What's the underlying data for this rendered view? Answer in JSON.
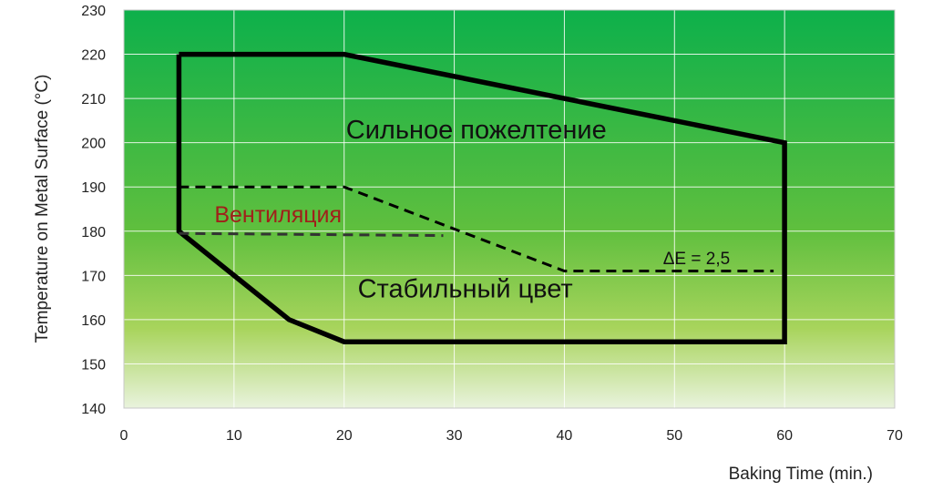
{
  "chart_data": {
    "type": "line",
    "xlabel": "Baking Time (min.)",
    "ylabel": "Temperature on Metal Surface (°C)",
    "xlim": [
      0,
      70
    ],
    "ylim": [
      140,
      230
    ],
    "x_ticks": [
      "0",
      "10",
      "20",
      "30",
      "40",
      "50",
      "60",
      "70"
    ],
    "y_ticks": [
      "140",
      "150",
      "160",
      "170",
      "180",
      "190",
      "200",
      "210",
      "220",
      "230"
    ],
    "grid": true,
    "background": {
      "top_color": "#0db04b",
      "bottom_color": "#e9f3dd"
    },
    "series": [
      {
        "style": "solid",
        "color": "#000000",
        "x": [
          5,
          20,
          60,
          60,
          20,
          15,
          5,
          5
        ],
        "y": [
          220,
          220,
          200,
          155,
          155,
          160,
          180,
          220
        ]
      },
      {
        "style": "dashed",
        "color": "#000000",
        "x": [
          5,
          20,
          40,
          59
        ],
        "y": [
          190,
          190,
          171,
          171
        ]
      },
      {
        "style": "dashed",
        "color": "#333333",
        "x": [
          5,
          29
        ],
        "y": [
          179.5,
          179
        ]
      }
    ],
    "annotations": [
      {
        "text": "Сильное пожелтение",
        "x": 32,
        "y": 201,
        "color": "#111111",
        "kind": "region"
      },
      {
        "text": "Вентиляция",
        "x": 14,
        "y": 182,
        "color": "#a0201a",
        "kind": "vent"
      },
      {
        "text": "ΔE = 2,5",
        "x": 52,
        "y": 172.5,
        "color": "#111111",
        "kind": "de"
      },
      {
        "text": "Стабильный цвет",
        "x": 31,
        "y": 165,
        "color": "#111111",
        "kind": "region"
      }
    ]
  }
}
